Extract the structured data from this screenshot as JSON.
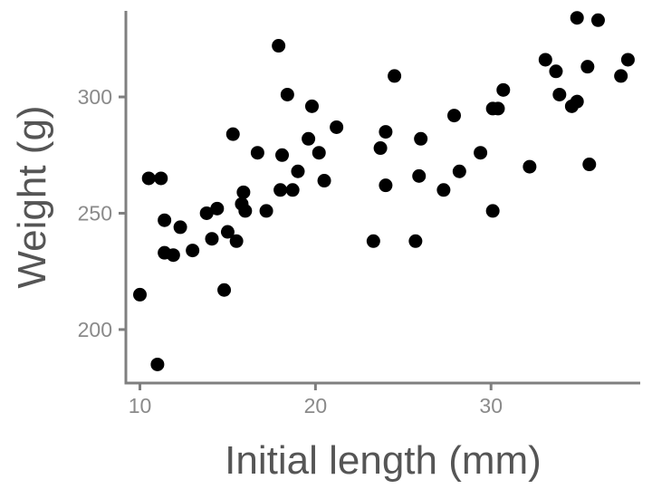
{
  "chart_data": {
    "type": "scatter",
    "title": "",
    "xlabel": "Initial length (mm)",
    "ylabel": "Weight (g)",
    "xlim": [
      9.2,
      38.5
    ],
    "ylim": [
      177,
      337
    ],
    "x_ticks": [
      10,
      20,
      30
    ],
    "y_ticks": [
      200,
      250,
      300
    ],
    "grid": false,
    "legend": "none",
    "point_color": "#000000",
    "axis_color": "#7f7f7f",
    "points": [
      {
        "x": 10.0,
        "y": 215
      },
      {
        "x": 10.5,
        "y": 265
      },
      {
        "x": 11.0,
        "y": 185
      },
      {
        "x": 11.2,
        "y": 265
      },
      {
        "x": 11.4,
        "y": 247
      },
      {
        "x": 11.4,
        "y": 233
      },
      {
        "x": 11.9,
        "y": 232
      },
      {
        "x": 12.3,
        "y": 244
      },
      {
        "x": 13.0,
        "y": 234
      },
      {
        "x": 13.8,
        "y": 250
      },
      {
        "x": 14.1,
        "y": 239
      },
      {
        "x": 14.4,
        "y": 252
      },
      {
        "x": 14.8,
        "y": 217
      },
      {
        "x": 15.0,
        "y": 242
      },
      {
        "x": 15.3,
        "y": 284
      },
      {
        "x": 15.5,
        "y": 238
      },
      {
        "x": 15.8,
        "y": 254
      },
      {
        "x": 15.9,
        "y": 259
      },
      {
        "x": 16.0,
        "y": 251
      },
      {
        "x": 16.7,
        "y": 276
      },
      {
        "x": 17.2,
        "y": 251
      },
      {
        "x": 17.9,
        "y": 322
      },
      {
        "x": 18.0,
        "y": 260
      },
      {
        "x": 18.1,
        "y": 275
      },
      {
        "x": 18.4,
        "y": 301
      },
      {
        "x": 18.7,
        "y": 260
      },
      {
        "x": 19.0,
        "y": 268
      },
      {
        "x": 19.6,
        "y": 282
      },
      {
        "x": 19.8,
        "y": 296
      },
      {
        "x": 20.2,
        "y": 276
      },
      {
        "x": 20.5,
        "y": 264
      },
      {
        "x": 21.2,
        "y": 287
      },
      {
        "x": 23.3,
        "y": 238
      },
      {
        "x": 23.7,
        "y": 278
      },
      {
        "x": 24.0,
        "y": 262
      },
      {
        "x": 24.0,
        "y": 285
      },
      {
        "x": 24.5,
        "y": 309
      },
      {
        "x": 25.7,
        "y": 238
      },
      {
        "x": 25.9,
        "y": 266
      },
      {
        "x": 26.0,
        "y": 282
      },
      {
        "x": 27.3,
        "y": 260
      },
      {
        "x": 27.9,
        "y": 292
      },
      {
        "x": 28.2,
        "y": 268
      },
      {
        "x": 29.4,
        "y": 276
      },
      {
        "x": 30.1,
        "y": 251
      },
      {
        "x": 30.1,
        "y": 295
      },
      {
        "x": 30.4,
        "y": 295
      },
      {
        "x": 30.7,
        "y": 303
      },
      {
        "x": 32.2,
        "y": 270
      },
      {
        "x": 33.1,
        "y": 316
      },
      {
        "x": 33.7,
        "y": 311
      },
      {
        "x": 33.9,
        "y": 301
      },
      {
        "x": 34.6,
        "y": 296
      },
      {
        "x": 34.9,
        "y": 334
      },
      {
        "x": 34.9,
        "y": 298
      },
      {
        "x": 35.5,
        "y": 313
      },
      {
        "x": 35.6,
        "y": 271
      },
      {
        "x": 36.1,
        "y": 333
      },
      {
        "x": 37.4,
        "y": 309
      },
      {
        "x": 37.8,
        "y": 316
      }
    ]
  }
}
